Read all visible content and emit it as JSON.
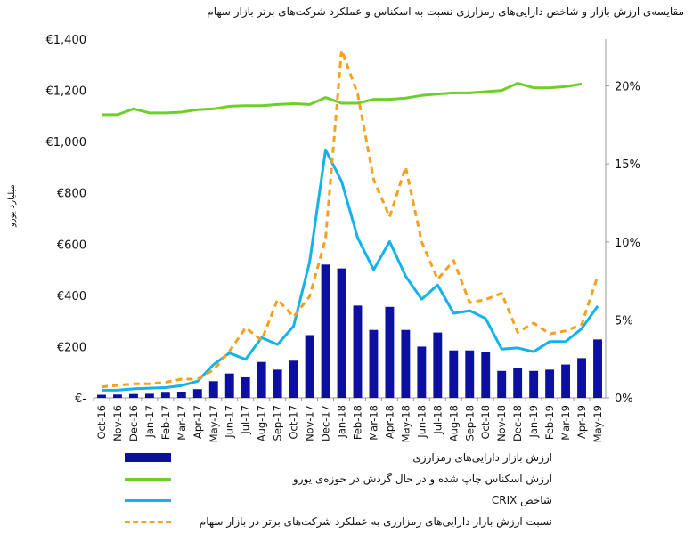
{
  "title": "مقایسه‌ی ارزش بازار و شاخص دارایی‌های رمزارزی نسبت به اسکناس و عملکرد شرکت‌های برتر بازار سهام",
  "colors": {
    "market_cap_bar": "#0d0fa0",
    "banknotes_line": "#6ecf2a",
    "crix_line": "#11b4ea",
    "ratio_line": "#f5a01e",
    "axis": "#999999"
  },
  "chart_data": {
    "type": "bar+line",
    "title": "مقایسه‌ی ارزش بازار و شاخص دارایی‌های رمزارزی نسبت به اسکناس و عملکرد شرکت‌های برتر بازار سهام",
    "ylabel": "میلیارد یورو",
    "y_left": {
      "min": 0,
      "max": 1400,
      "ticks": [
        0,
        200,
        400,
        600,
        800,
        1000,
        1200,
        1400
      ],
      "tick_labels": [
        "€-",
        "€200",
        "€400",
        "€600",
        "€800",
        "€1,000",
        "€1,200",
        "€1,400"
      ]
    },
    "y_right": {
      "min": 0,
      "max": 23,
      "ticks": [
        0,
        5,
        10,
        15,
        20
      ],
      "tick_labels": [
        "0%",
        "5%",
        "10%",
        "15%",
        "20%"
      ]
    },
    "categories": [
      "Oct-16",
      "Nov-16",
      "Dec-16",
      "Jan-17",
      "Feb-17",
      "Mar-17",
      "Apr-17",
      "May-17",
      "Jun-17",
      "Jul-17",
      "Aug-17",
      "Sep-17",
      "Oct-17",
      "Nov-17",
      "Dec-17",
      "Jan-18",
      "Feb-18",
      "Mar-18",
      "Apr-18",
      "May-18",
      "Jun-18",
      "Jul-18",
      "Aug-18",
      "Sep-18",
      "Oct-18",
      "Nov-18",
      "Dec-18",
      "Jan-19",
      "Feb-19",
      "Mar-19",
      "Apr-19",
      "May-19"
    ],
    "series": [
      {
        "name": "ارزش بازار دارایی‌های رمزارزی",
        "kind": "bar",
        "axis": "left",
        "values": [
          12,
          13,
          15,
          16,
          20,
          22,
          34,
          65,
          95,
          80,
          140,
          110,
          145,
          245,
          520,
          505,
          360,
          265,
          355,
          265,
          200,
          255,
          185,
          185,
          180,
          105,
          115,
          105,
          110,
          130,
          155,
          228
        ]
      },
      {
        "name": "ارزش اسکناس چاپ شده و در حال گردش در حوزه‌ی یورو",
        "kind": "line",
        "axis": "left",
        "values": [
          1105,
          1105,
          1128,
          1112,
          1112,
          1115,
          1125,
          1128,
          1138,
          1140,
          1140,
          1145,
          1148,
          1145,
          1172,
          1150,
          1150,
          1165,
          1165,
          1170,
          1180,
          1186,
          1190,
          1190,
          1195,
          1200,
          1228,
          1210,
          1210,
          1215,
          1225,
          null
        ]
      },
      {
        "name": "شاخص CRIX",
        "kind": "line",
        "axis": "left",
        "values": [
          30,
          30,
          35,
          38,
          40,
          48,
          65,
          130,
          175,
          150,
          235,
          208,
          280,
          530,
          968,
          845,
          625,
          500,
          610,
          475,
          385,
          440,
          330,
          340,
          310,
          190,
          195,
          180,
          220,
          220,
          270,
          358
        ]
      },
      {
        "name": "نسبت ارزش بازار دارایی‌های رمزارزی به عملکرد شرکت‌های برتر در بازار سهام",
        "kind": "dashed-line",
        "axis": "right",
        "values": [
          0.7,
          0.8,
          0.9,
          0.9,
          1.0,
          1.2,
          1.2,
          1.8,
          3.0,
          4.5,
          3.7,
          6.3,
          5.2,
          6.5,
          10.2,
          22.3,
          19.5,
          14.0,
          11.6,
          14.8,
          10.0,
          7.6,
          8.8,
          6.1,
          6.3,
          6.7,
          4.2,
          4.8,
          4.1,
          4.3,
          4.7,
          7.8
        ]
      }
    ]
  },
  "legend": [
    {
      "label": "ارزش بازار دارایی‌های رمزارزی",
      "style": "bar"
    },
    {
      "label": "ارزش اسکناس چاپ شده و در حال گردش در حوزه‌ی یورو",
      "style": "green-line"
    },
    {
      "label": "شاخص CRIX",
      "style": "blue-line"
    },
    {
      "label": "نسبت ارزش بازار دارایی‌های رمزارزی به عملکرد شرکت‌های برتر در بازار سهام",
      "style": "orange-dashed"
    }
  ]
}
